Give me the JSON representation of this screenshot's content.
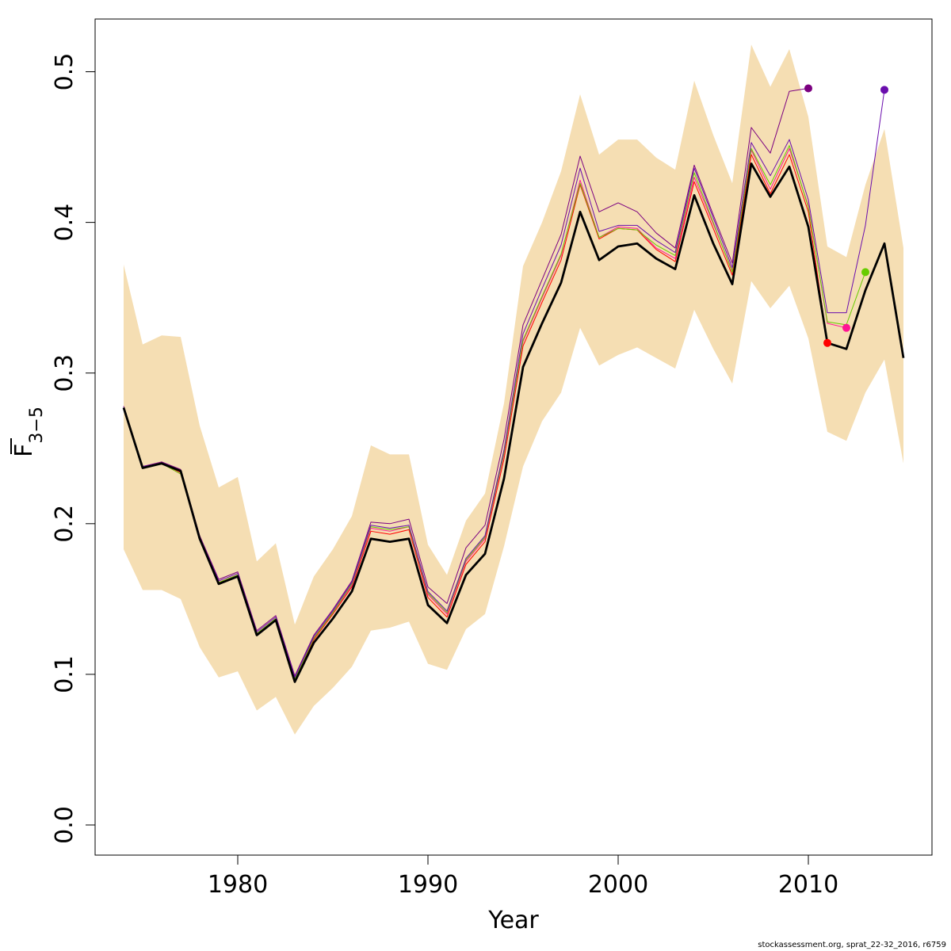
{
  "chart_data": {
    "type": "line",
    "title": "",
    "xlabel": "Year",
    "ylabel": {
      "base": "F",
      "sub": "3−5"
    },
    "xlim": [
      1972.5,
      2016.5
    ],
    "ylim": [
      -0.02,
      0.535
    ],
    "xticks": [
      1980,
      1990,
      2000,
      2010
    ],
    "yticks": [
      0.0,
      0.1,
      0.2,
      0.3,
      0.4,
      0.5
    ],
    "ytick_labels": [
      "0.0",
      "0.1",
      "0.2",
      "0.3",
      "0.4",
      "0.5"
    ],
    "grid": false,
    "legend": "none",
    "band_color": "#f5deb3",
    "confidence_band": {
      "x": [
        1974,
        1975,
        1976,
        1977,
        1978,
        1979,
        1980,
        1981,
        1982,
        1983,
        1984,
        1985,
        1986,
        1987,
        1988,
        1989,
        1990,
        1991,
        1992,
        1993,
        1994,
        1995,
        1996,
        1997,
        1998,
        1999,
        2000,
        2001,
        2002,
        2003,
        2004,
        2005,
        2006,
        2007,
        2008,
        2009,
        2010,
        2011,
        2012,
        2013,
        2014,
        2015
      ],
      "upper": [
        0.372,
        0.319,
        0.325,
        0.324,
        0.265,
        0.224,
        0.231,
        0.175,
        0.187,
        0.133,
        0.165,
        0.183,
        0.205,
        0.252,
        0.246,
        0.246,
        0.186,
        0.166,
        0.202,
        0.22,
        0.28,
        0.371,
        0.4,
        0.434,
        0.485,
        0.445,
        0.455,
        0.455,
        0.443,
        0.435,
        0.494,
        0.458,
        0.426,
        0.518,
        0.49,
        0.515,
        0.47,
        0.384,
        0.377,
        0.425,
        0.462,
        0.383
      ],
      "lower": [
        0.183,
        0.156,
        0.156,
        0.15,
        0.118,
        0.098,
        0.102,
        0.076,
        0.085,
        0.06,
        0.079,
        0.091,
        0.105,
        0.129,
        0.131,
        0.135,
        0.107,
        0.103,
        0.13,
        0.14,
        0.185,
        0.238,
        0.268,
        0.287,
        0.33,
        0.305,
        0.312,
        0.317,
        0.31,
        0.303,
        0.342,
        0.316,
        0.293,
        0.361,
        0.343,
        0.358,
        0.323,
        0.261,
        0.255,
        0.287,
        0.309,
        0.24
      ]
    },
    "series": [
      {
        "name": "",
        "color": "#000000",
        "width": 2.8,
        "role": "current",
        "x": [
          1974,
          1975,
          1976,
          1977,
          1978,
          1979,
          1980,
          1981,
          1982,
          1983,
          1984,
          1985,
          1986,
          1987,
          1988,
          1989,
          1990,
          1991,
          1992,
          1993,
          1994,
          1995,
          1996,
          1997,
          1998,
          1999,
          2000,
          2001,
          2002,
          2003,
          2004,
          2005,
          2006,
          2007,
          2008,
          2009,
          2010,
          2011,
          2012,
          2013,
          2014,
          2015
        ],
        "values": [
          0.277,
          0.237,
          0.24,
          0.235,
          0.19,
          0.16,
          0.165,
          0.126,
          0.136,
          0.095,
          0.121,
          0.137,
          0.155,
          0.19,
          0.188,
          0.19,
          0.146,
          0.134,
          0.166,
          0.18,
          0.23,
          0.304,
          0.333,
          0.36,
          0.407,
          0.375,
          0.384,
          0.386,
          0.376,
          0.369,
          0.418,
          0.386,
          0.359,
          0.439,
          0.417,
          0.437,
          0.397,
          0.32,
          0.316,
          0.355,
          0.386,
          0.31
        ]
      },
      {
        "name": "",
        "color": "#ff0000",
        "width": 1.0,
        "end_marker": true,
        "x": [
          1974,
          1975,
          1976,
          1977,
          1978,
          1979,
          1980,
          1981,
          1982,
          1983,
          1984,
          1985,
          1986,
          1987,
          1988,
          1989,
          1990,
          1991,
          1992,
          1993,
          1994,
          1995,
          1996,
          1997,
          1998,
          1999,
          2000,
          2001,
          2002,
          2003,
          2004,
          2005,
          2006,
          2007,
          2008,
          2009,
          2010,
          2011
        ],
        "values": [
          0.277,
          0.237,
          0.24,
          0.234,
          0.19,
          0.161,
          0.166,
          0.126,
          0.137,
          0.096,
          0.123,
          0.14,
          0.158,
          0.195,
          0.193,
          0.196,
          0.151,
          0.138,
          0.173,
          0.188,
          0.243,
          0.318,
          0.347,
          0.375,
          0.425,
          0.389,
          0.396,
          0.395,
          0.382,
          0.374,
          0.427,
          0.396,
          0.365,
          0.445,
          0.419,
          0.445,
          0.407,
          0.32
        ]
      },
      {
        "name": "",
        "color": "#ff1493",
        "width": 1.0,
        "end_marker": true,
        "x": [
          1974,
          1975,
          1976,
          1977,
          1978,
          1979,
          1980,
          1981,
          1982,
          1983,
          1984,
          1985,
          1986,
          1987,
          1988,
          1989,
          1990,
          1991,
          1992,
          1993,
          1994,
          1995,
          1996,
          1997,
          1998,
          1999,
          2000,
          2001,
          2002,
          2003,
          2004,
          2005,
          2006,
          2007,
          2008,
          2009,
          2010,
          2011,
          2012
        ],
        "values": [
          0.277,
          0.237,
          0.24,
          0.233,
          0.19,
          0.161,
          0.166,
          0.127,
          0.137,
          0.097,
          0.124,
          0.141,
          0.159,
          0.197,
          0.195,
          0.198,
          0.153,
          0.14,
          0.175,
          0.19,
          0.246,
          0.321,
          0.35,
          0.378,
          0.428,
          0.39,
          0.397,
          0.396,
          0.383,
          0.376,
          0.43,
          0.399,
          0.368,
          0.448,
          0.422,
          0.449,
          0.411,
          0.333,
          0.33
        ]
      },
      {
        "name": "",
        "color": "#66cc00",
        "width": 1.0,
        "end_marker": true,
        "x": [
          1974,
          1975,
          1976,
          1977,
          1978,
          1979,
          1980,
          1981,
          1982,
          1983,
          1984,
          1985,
          1986,
          1987,
          1988,
          1989,
          1990,
          1991,
          1992,
          1993,
          1994,
          1995,
          1996,
          1997,
          1998,
          1999,
          2000,
          2001,
          2002,
          2003,
          2004,
          2005,
          2006,
          2007,
          2008,
          2009,
          2010,
          2011,
          2012,
          2013
        ],
        "values": [
          0.277,
          0.237,
          0.24,
          0.233,
          0.19,
          0.161,
          0.166,
          0.127,
          0.137,
          0.097,
          0.124,
          0.141,
          0.16,
          0.198,
          0.196,
          0.198,
          0.154,
          0.141,
          0.176,
          0.191,
          0.247,
          0.322,
          0.351,
          0.379,
          0.426,
          0.39,
          0.396,
          0.395,
          0.385,
          0.378,
          0.433,
          0.4,
          0.367,
          0.449,
          0.425,
          0.451,
          0.41,
          0.334,
          0.332,
          0.367
        ]
      },
      {
        "name": "",
        "color": "#7b0080",
        "width": 1.0,
        "end_marker": true,
        "x": [
          1974,
          1975,
          1976,
          1977,
          1978,
          1979,
          1980,
          1981,
          1982,
          1983,
          1984,
          1985,
          1986,
          1987,
          1988,
          1989,
          1990,
          1991,
          1992,
          1993,
          1994,
          1995,
          1996,
          1997,
          1998,
          1999,
          2000,
          2001,
          2002,
          2003,
          2004,
          2005,
          2006,
          2007,
          2008,
          2009,
          2010
        ],
        "values": [
          0.278,
          0.238,
          0.241,
          0.236,
          0.192,
          0.163,
          0.168,
          0.129,
          0.139,
          0.099,
          0.126,
          0.143,
          0.162,
          0.201,
          0.2,
          0.203,
          0.158,
          0.147,
          0.184,
          0.199,
          0.256,
          0.332,
          0.362,
          0.392,
          0.444,
          0.407,
          0.413,
          0.407,
          0.393,
          0.383,
          0.438,
          0.405,
          0.373,
          0.463,
          0.446,
          0.487,
          0.489
        ]
      },
      {
        "name": "",
        "color": "#6a0dad",
        "width": 1.0,
        "end_marker": true,
        "x": [
          1974,
          1975,
          1976,
          1977,
          1978,
          1979,
          1980,
          1981,
          1982,
          1983,
          1984,
          1985,
          1986,
          1987,
          1988,
          1989,
          1990,
          1991,
          1992,
          1993,
          1994,
          1995,
          1996,
          1997,
          1998,
          1999,
          2000,
          2001,
          2002,
          2003,
          2004,
          2005,
          2006,
          2007,
          2008,
          2009,
          2010,
          2011,
          2012,
          2013,
          2014
        ],
        "values": [
          0.277,
          0.238,
          0.24,
          0.235,
          0.191,
          0.162,
          0.167,
          0.128,
          0.138,
          0.098,
          0.125,
          0.142,
          0.161,
          0.199,
          0.197,
          0.199,
          0.155,
          0.142,
          0.177,
          0.192,
          0.249,
          0.326,
          0.356,
          0.385,
          0.436,
          0.394,
          0.398,
          0.398,
          0.388,
          0.38,
          0.436,
          0.403,
          0.37,
          0.453,
          0.431,
          0.455,
          0.415,
          0.34,
          0.34,
          0.398,
          0.488
        ]
      }
    ]
  },
  "footer": "stockassessment.org, sprat_22-32_2016, r6759"
}
